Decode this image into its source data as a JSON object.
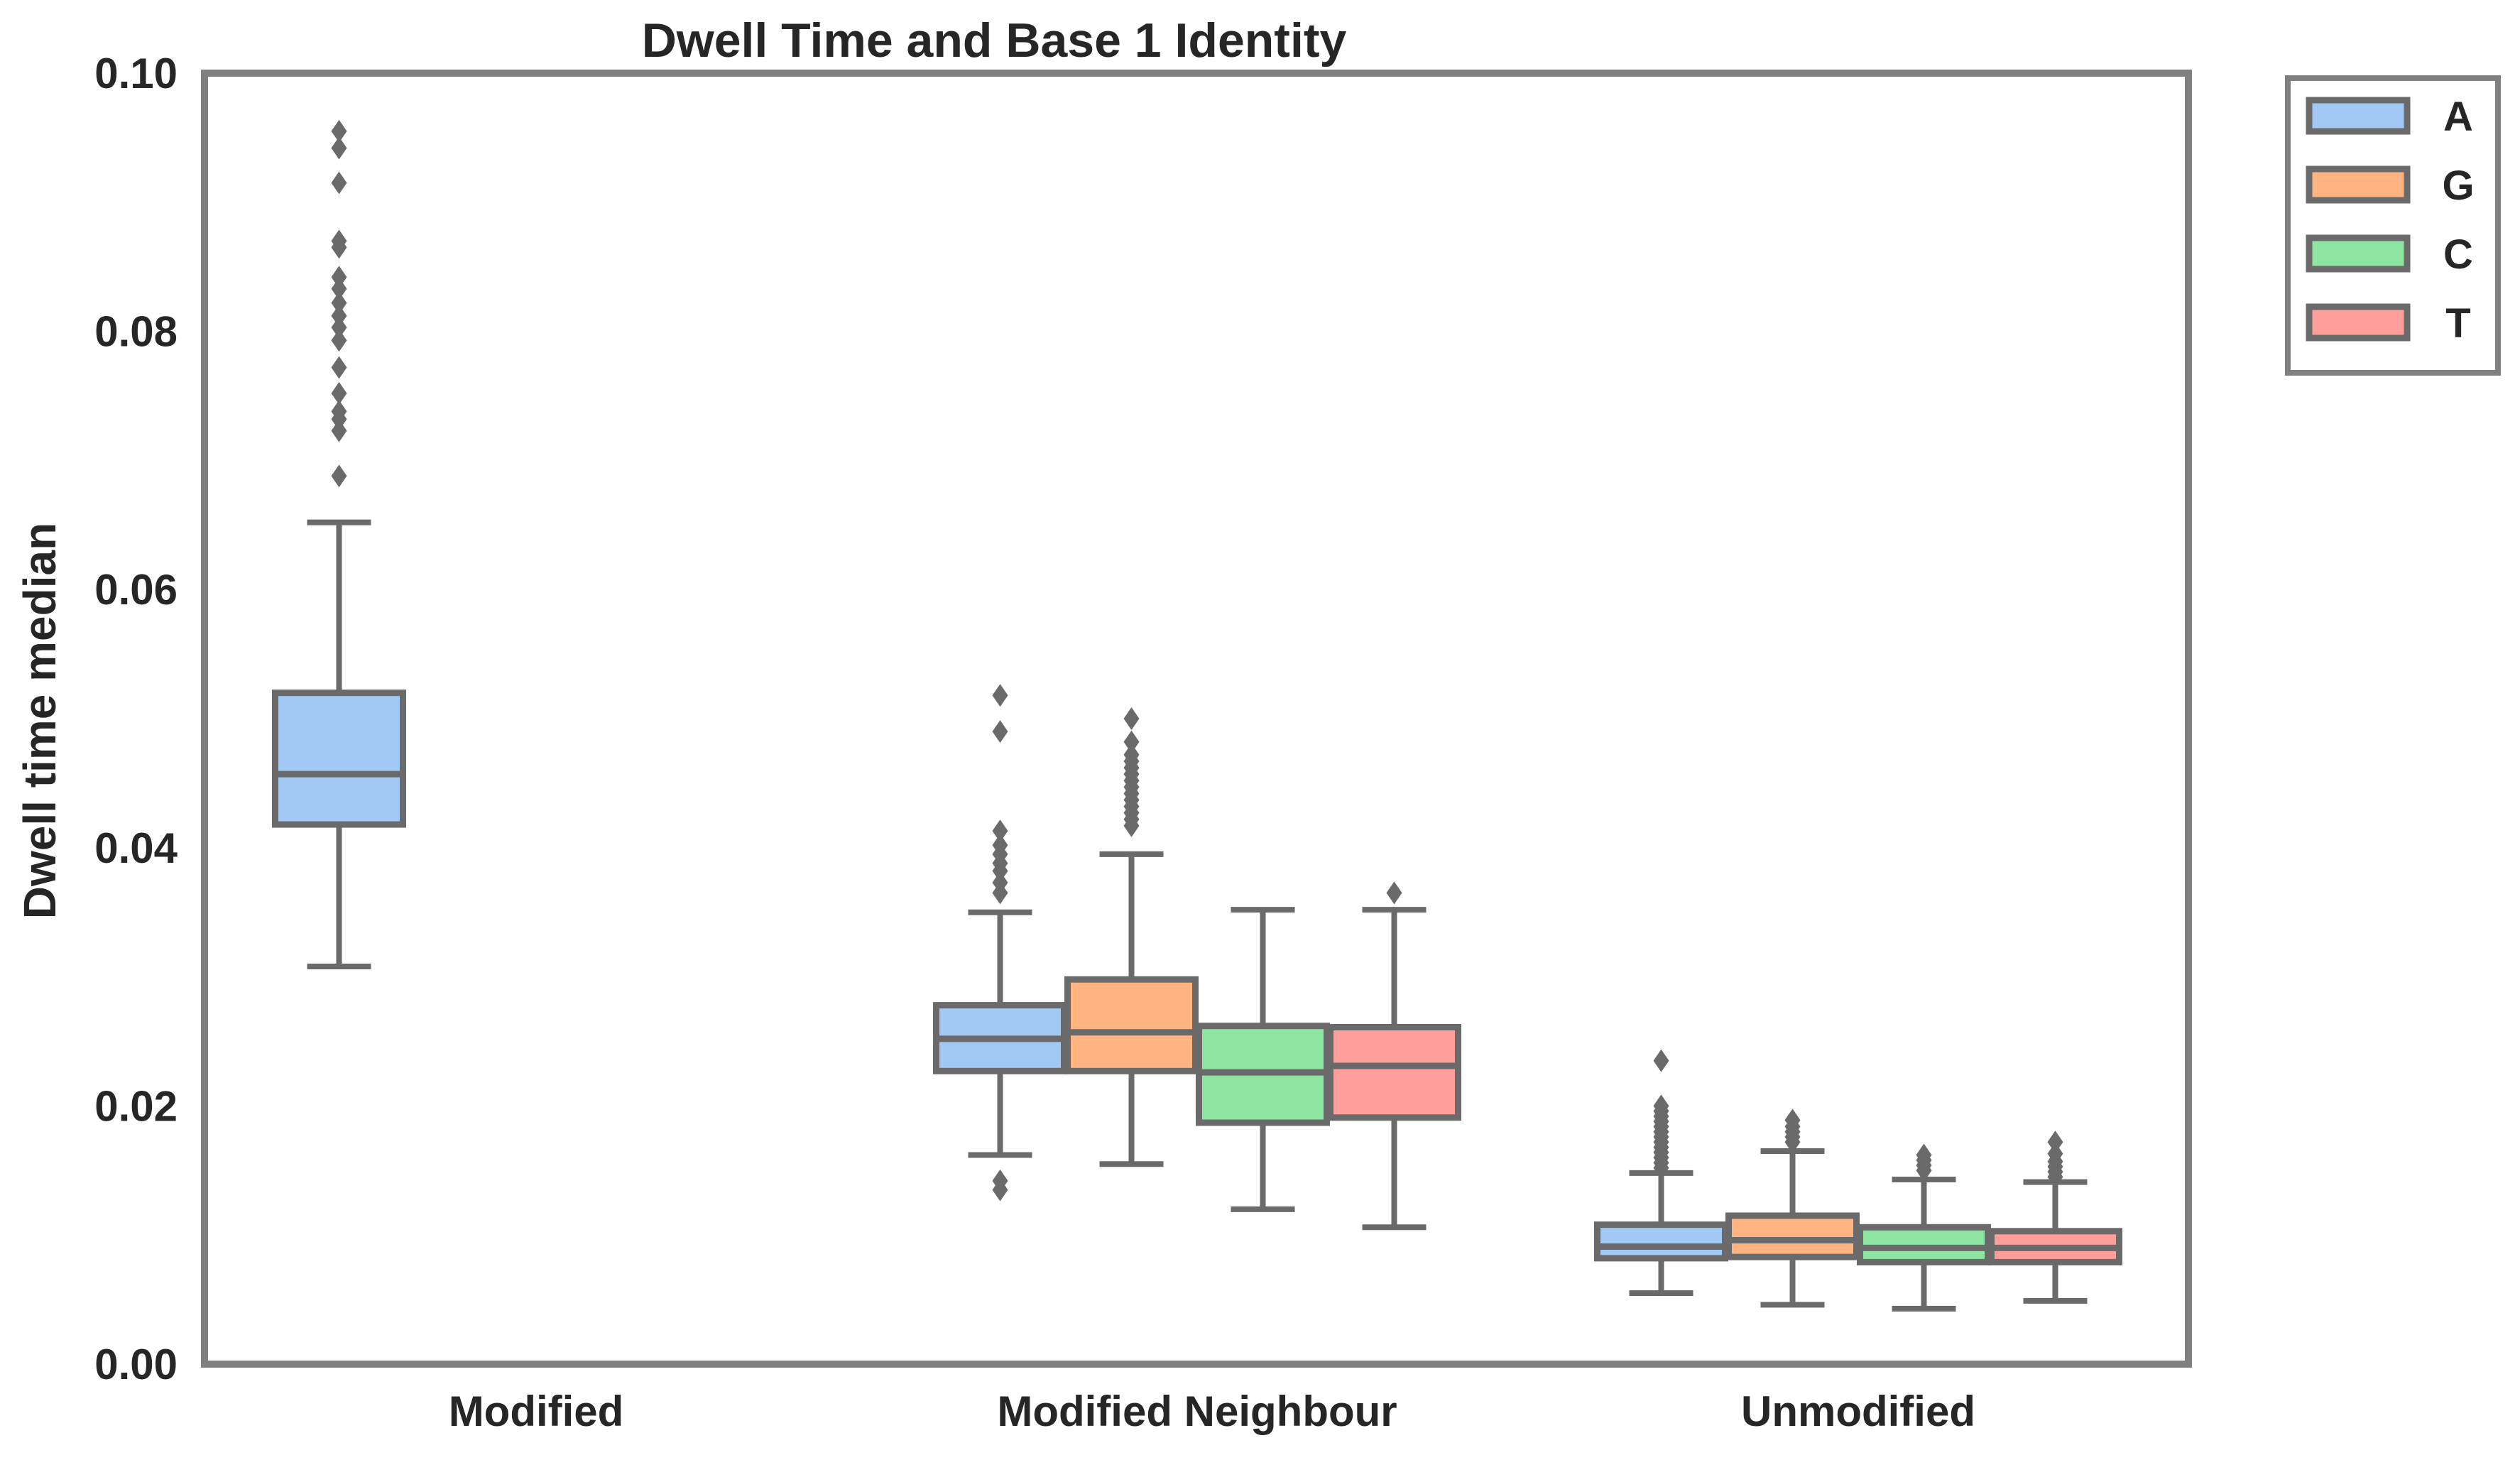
{
  "chart_data": {
    "type": "box",
    "title": "Dwell Time and Base 1 Identity",
    "xlabel": "",
    "ylabel": "Dwell time median",
    "ylim": [
      0,
      0.1
    ],
    "yticks": [
      "0.00",
      "0.02",
      "0.04",
      "0.06",
      "0.08",
      "0.10"
    ],
    "categories": [
      "Modified",
      "Modified Neighbour",
      "Unmodified"
    ],
    "legend_position": "outside-top-right",
    "grid": false,
    "series": [
      {
        "name": "A",
        "color": "#a1c9f4",
        "boxes": [
          {
            "category": "Modified",
            "whisker_low": 0.0308,
            "q1": 0.0418,
            "median": 0.0457,
            "q3": 0.052,
            "whisker_high": 0.0652,
            "outliers": [
              0.0688,
              0.0723,
              0.0732,
              0.0738,
              0.0752,
              0.0772,
              0.0793,
              0.0803,
              0.0812,
              0.0822,
              0.0833,
              0.0842,
              0.0865,
              0.087,
              0.0915,
              0.0942,
              0.0955
            ]
          },
          {
            "category": "Modified Neighbour",
            "whisker_low": 0.0162,
            "q1": 0.0227,
            "median": 0.0252,
            "q3": 0.0278,
            "whisker_high": 0.035,
            "outliers": [
              0.0135,
              0.0142,
              0.0365,
              0.0373,
              0.0382,
              0.0388,
              0.0395,
              0.0402,
              0.0413,
              0.049,
              0.0518
            ]
          },
          {
            "category": "Unmodified",
            "whisker_low": 0.0055,
            "q1": 0.0082,
            "median": 0.0091,
            "q3": 0.0108,
            "whisker_high": 0.0148,
            "outliers": [
              0.0152,
              0.0156,
              0.016,
              0.0164,
              0.0168,
              0.0172,
              0.0176,
              0.018,
              0.0184,
              0.0188,
              0.0192,
              0.0196,
              0.02,
              0.0235
            ]
          }
        ]
      },
      {
        "name": "G",
        "color": "#ffb482",
        "boxes": [
          {
            "category": "Modified Neighbour",
            "whisker_low": 0.0155,
            "q1": 0.0227,
            "median": 0.0257,
            "q3": 0.0298,
            "whisker_high": 0.0395,
            "outliers": [
              0.0417,
              0.0422,
              0.0427,
              0.0432,
              0.0437,
              0.0442,
              0.0447,
              0.0452,
              0.0457,
              0.0462,
              0.0467,
              0.0472,
              0.0482,
              0.05
            ]
          },
          {
            "category": "Unmodified",
            "whisker_low": 0.0046,
            "q1": 0.0083,
            "median": 0.0096,
            "q3": 0.0115,
            "whisker_high": 0.0165,
            "outliers": [
              0.0172,
              0.0176,
              0.018,
              0.0184,
              0.0189
            ]
          }
        ]
      },
      {
        "name": "C",
        "color": "#8de5a1",
        "boxes": [
          {
            "category": "Modified Neighbour",
            "whisker_low": 0.012,
            "q1": 0.0187,
            "median": 0.0226,
            "q3": 0.0262,
            "whisker_high": 0.0352,
            "outliers": []
          },
          {
            "category": "Unmodified",
            "whisker_low": 0.0043,
            "q1": 0.0079,
            "median": 0.009,
            "q3": 0.0106,
            "whisker_high": 0.0143,
            "outliers": [
              0.015,
              0.0154,
              0.0158,
              0.0162
            ]
          }
        ]
      },
      {
        "name": "T",
        "color": "#ff9f9b",
        "boxes": [
          {
            "category": "Modified Neighbour",
            "whisker_low": 0.0106,
            "q1": 0.0191,
            "median": 0.0231,
            "q3": 0.0261,
            "whisker_high": 0.0352,
            "outliers": [
              0.0365
            ]
          },
          {
            "category": "Unmodified",
            "whisker_low": 0.0049,
            "q1": 0.0079,
            "median": 0.009,
            "q3": 0.0103,
            "whisker_high": 0.0141,
            "outliers": [
              0.0145,
              0.0149,
              0.0153,
              0.0157,
              0.0163,
              0.0172
            ]
          }
        ]
      }
    ]
  }
}
